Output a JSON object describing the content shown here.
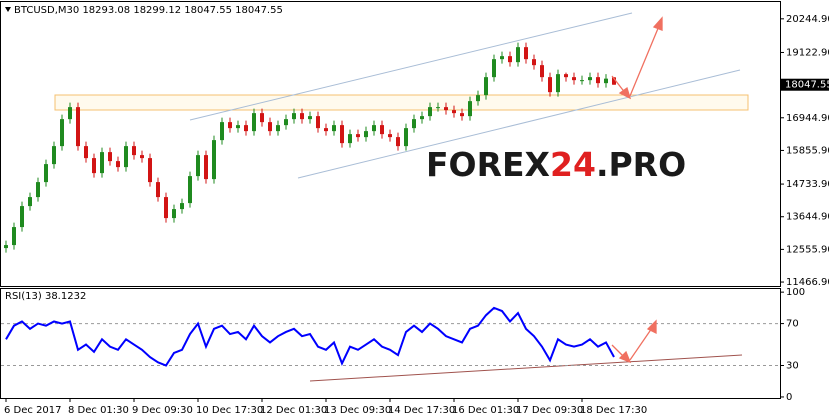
{
  "chart_data": [
    {
      "type": "candlestick",
      "title": "BTCUSD,M30  18293.08 18299.12 18047.55 18047.55",
      "open": [
        12600,
        12700,
        13300,
        14000,
        14300,
        14800,
        15400,
        16000,
        16900,
        17300,
        16000,
        15600,
        15100,
        15800,
        15500,
        15300,
        16000,
        15700,
        15600,
        14800,
        14300,
        13600,
        13900,
        14100,
        15000,
        15700,
        14900,
        16200,
        16800,
        16600,
        16700,
        16500,
        17100,
        16800,
        16500,
        16700,
        16900,
        17100,
        16900,
        17000,
        16600,
        16500,
        16700,
        16100,
        16400,
        16300,
        16500,
        16700,
        16400,
        16300,
        16000,
        16600,
        16900,
        17000,
        17300,
        17300,
        17200,
        17100,
        17000,
        17500,
        17700,
        18300,
        18900,
        19000,
        18800,
        19300,
        18900,
        18700,
        18300,
        17800,
        18400,
        18300,
        18200,
        18200,
        18300,
        18100,
        18293.08
      ],
      "high": [
        12850,
        13450,
        14150,
        14450,
        14950,
        15550,
        16150,
        17050,
        17450,
        17450,
        16150,
        15750,
        15950,
        15950,
        15650,
        16150,
        16150,
        15850,
        15750,
        14950,
        14450,
        14050,
        14250,
        15150,
        15850,
        15850,
        16350,
        16950,
        16950,
        16850,
        16850,
        17250,
        17250,
        16950,
        16850,
        17050,
        17250,
        17250,
        17150,
        17150,
        16750,
        16850,
        16850,
        16550,
        16550,
        16650,
        16850,
        16850,
        16550,
        16450,
        16750,
        17050,
        17150,
        17450,
        17450,
        17450,
        17350,
        17250,
        17650,
        17850,
        18450,
        19050,
        19150,
        19150,
        19450,
        19450,
        19050,
        18850,
        18450,
        18550,
        18450,
        18450,
        18350,
        18450,
        18450,
        18400,
        18299.12
      ],
      "low": [
        12450,
        12550,
        13150,
        13850,
        14150,
        14650,
        15250,
        15850,
        16750,
        15850,
        15450,
        14950,
        14950,
        15350,
        15150,
        15150,
        15550,
        15450,
        14650,
        14150,
        13450,
        13450,
        13750,
        13950,
        14850,
        14750,
        14750,
        16050,
        16450,
        16450,
        16350,
        16350,
        16650,
        16350,
        16350,
        16550,
        16750,
        16750,
        16750,
        16450,
        16350,
        16350,
        15950,
        15950,
        16150,
        16150,
        16350,
        16250,
        16150,
        15850,
        15850,
        16450,
        16750,
        16850,
        17150,
        17050,
        16950,
        16850,
        16850,
        17350,
        17550,
        18150,
        18750,
        18650,
        18650,
        18750,
        18550,
        18150,
        17650,
        17650,
        18150,
        18050,
        18050,
        18050,
        17950,
        17950,
        18047.55
      ],
      "close": [
        12700,
        13300,
        14000,
        14300,
        14800,
        15400,
        16000,
        16900,
        17300,
        16000,
        15600,
        15100,
        15800,
        15500,
        15300,
        16000,
        15700,
        15600,
        14800,
        14300,
        13600,
        13900,
        14100,
        15000,
        15700,
        14900,
        16200,
        16800,
        16600,
        16700,
        16500,
        17100,
        16800,
        16500,
        16700,
        16900,
        17100,
        16900,
        17000,
        16600,
        16500,
        16700,
        16100,
        16400,
        16300,
        16500,
        16700,
        16400,
        16300,
        16000,
        16600,
        16900,
        17000,
        17300,
        17300,
        17200,
        17100,
        17000,
        17500,
        17700,
        18300,
        18900,
        19000,
        18800,
        19300,
        18900,
        18700,
        18300,
        17800,
        18400,
        18300,
        18200,
        18200,
        18300,
        18100,
        18250,
        18047.55
      ],
      "up_color": "#1f8a1f",
      "down_color": "#d21414",
      "ylim": [
        11335,
        20806
      ],
      "yticks": [
        {
          "value": 20244.9,
          "label": "20244.90"
        },
        {
          "value": 19122.9,
          "label": "19122.90"
        },
        {
          "value": 16944.9,
          "label": "16944.90"
        },
        {
          "value": 15855.9,
          "label": "15855.90"
        },
        {
          "value": 14733.9,
          "label": "14733.90"
        },
        {
          "value": 13644.9,
          "label": "13644.90"
        },
        {
          "value": 12555.9,
          "label": "12555.90"
        },
        {
          "value": 11466.9,
          "label": "11466.90"
        }
      ],
      "last_price": 18047.55,
      "watermark": [
        {
          "text": "FOREX",
          "color": "#1a1a1a"
        },
        {
          "text": "24",
          "color": "#e02020"
        },
        {
          "text": ".PRO",
          "color": "#1a1a1a"
        }
      ]
    },
    {
      "type": "line",
      "title": "RSI(13) 38.1232",
      "categories": [
        "6 Dec 2017",
        null,
        null,
        null,
        null,
        null,
        null,
        null,
        "8 Dec 01:30",
        null,
        null,
        null,
        null,
        null,
        null,
        null,
        "9 Dec 09:30",
        null,
        null,
        null,
        null,
        null,
        null,
        null,
        "10 Dec 17:30",
        null,
        null,
        null,
        null,
        null,
        null,
        null,
        "12 Dec 01:30",
        null,
        null,
        null,
        null,
        null,
        null,
        null,
        "13 Dec 09:30",
        null,
        null,
        null,
        null,
        null,
        null,
        null,
        "14 Dec 17:30",
        null,
        null,
        null,
        null,
        null,
        null,
        null,
        "16 Dec 01:30",
        null,
        null,
        null,
        null,
        null,
        null,
        null,
        "17 Dec 09:30",
        null,
        null,
        null,
        null,
        null,
        null,
        null,
        "18 Dec 17:30",
        null,
        null,
        null,
        null
      ],
      "series": [
        {
          "color": "#0000ff",
          "values": [
            55,
            68,
            72,
            65,
            70,
            68,
            72,
            70,
            72,
            45,
            50,
            43,
            55,
            48,
            45,
            55,
            50,
            45,
            38,
            33,
            30,
            42,
            45,
            60,
            70,
            48,
            65,
            68,
            60,
            62,
            55,
            68,
            58,
            52,
            58,
            62,
            65,
            58,
            60,
            48,
            45,
            52,
            32,
            48,
            45,
            50,
            55,
            48,
            45,
            40,
            62,
            68,
            62,
            70,
            65,
            58,
            55,
            52,
            65,
            68,
            78,
            85,
            82,
            72,
            80,
            65,
            58,
            48,
            35,
            55,
            50,
            48,
            50,
            55,
            48,
            52,
            38.1232
          ]
        }
      ],
      "ylim": [
        -1,
        103
      ],
      "yticks": [
        100,
        70,
        30,
        0
      ],
      "levels": [
        70,
        30
      ]
    }
  ]
}
